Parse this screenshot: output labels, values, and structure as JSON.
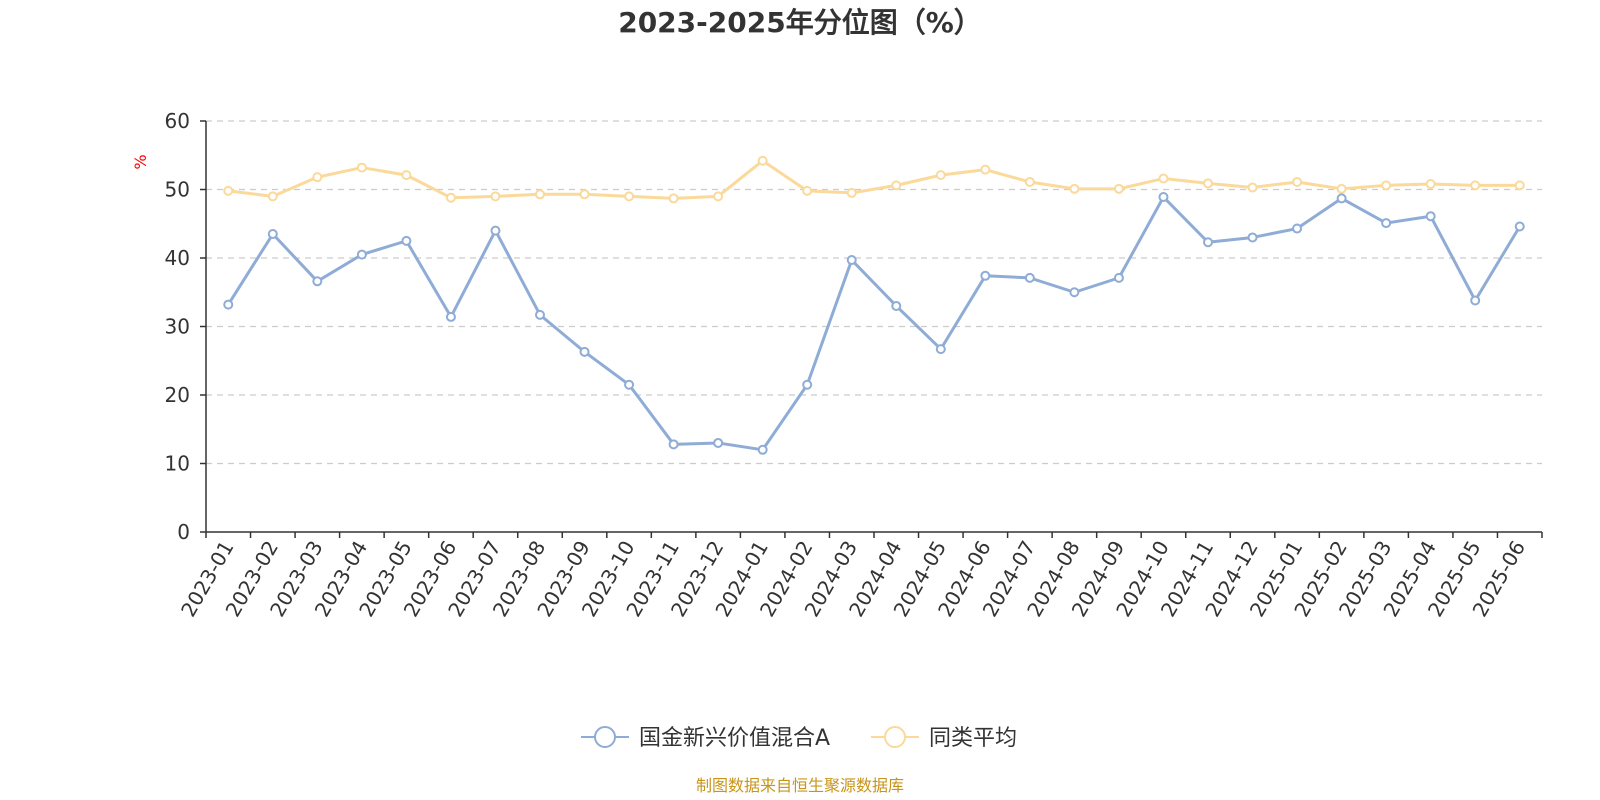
{
  "chart_data": {
    "type": "line",
    "title": "2023-2025年分位图（%）",
    "ylabel": "%",
    "ylim": [
      0,
      60
    ],
    "yticks": [
      0,
      10,
      20,
      30,
      40,
      50,
      60
    ],
    "grid": true,
    "legend_position": "bottom",
    "categories": [
      "2023-01",
      "2023-02",
      "2023-03",
      "2023-04",
      "2023-05",
      "2023-06",
      "2023-07",
      "2023-08",
      "2023-09",
      "2023-10",
      "2023-11",
      "2023-12",
      "2024-01",
      "2024-02",
      "2024-03",
      "2024-04",
      "2024-05",
      "2024-06",
      "2024-07",
      "2024-08",
      "2024-09",
      "2024-10",
      "2024-11",
      "2024-12",
      "2025-01",
      "2025-02",
      "2025-03",
      "2025-04",
      "2025-05",
      "2025-06"
    ],
    "series": [
      {
        "name": "国金新兴价值混合A",
        "color": "#8eacd6",
        "values": [
          33.2,
          43.5,
          36.6,
          40.5,
          42.5,
          31.4,
          44.0,
          31.7,
          26.3,
          21.5,
          12.8,
          13.0,
          12.0,
          21.5,
          39.7,
          33.0,
          26.7,
          37.4,
          37.1,
          35.0,
          37.1,
          48.9,
          42.3,
          43.0,
          44.3,
          48.7,
          45.1,
          46.1,
          33.8,
          44.6
        ]
      },
      {
        "name": "同类平均",
        "color": "#fbd99a",
        "values": [
          49.8,
          49.0,
          51.8,
          53.2,
          52.1,
          48.8,
          49.0,
          49.3,
          49.3,
          49.0,
          48.7,
          49.0,
          54.2,
          49.8,
          49.5,
          50.6,
          52.1,
          52.9,
          51.1,
          50.1,
          50.1,
          51.6,
          50.9,
          50.3,
          51.1,
          50.1,
          50.6,
          50.8,
          50.6,
          50.6
        ]
      }
    ]
  },
  "source_text": "制图数据来自恒生聚源数据库",
  "colors": {
    "ylabel": "#ff0000",
    "source": "#c8951a",
    "axis": "#333333",
    "grid": "#cccccc"
  }
}
